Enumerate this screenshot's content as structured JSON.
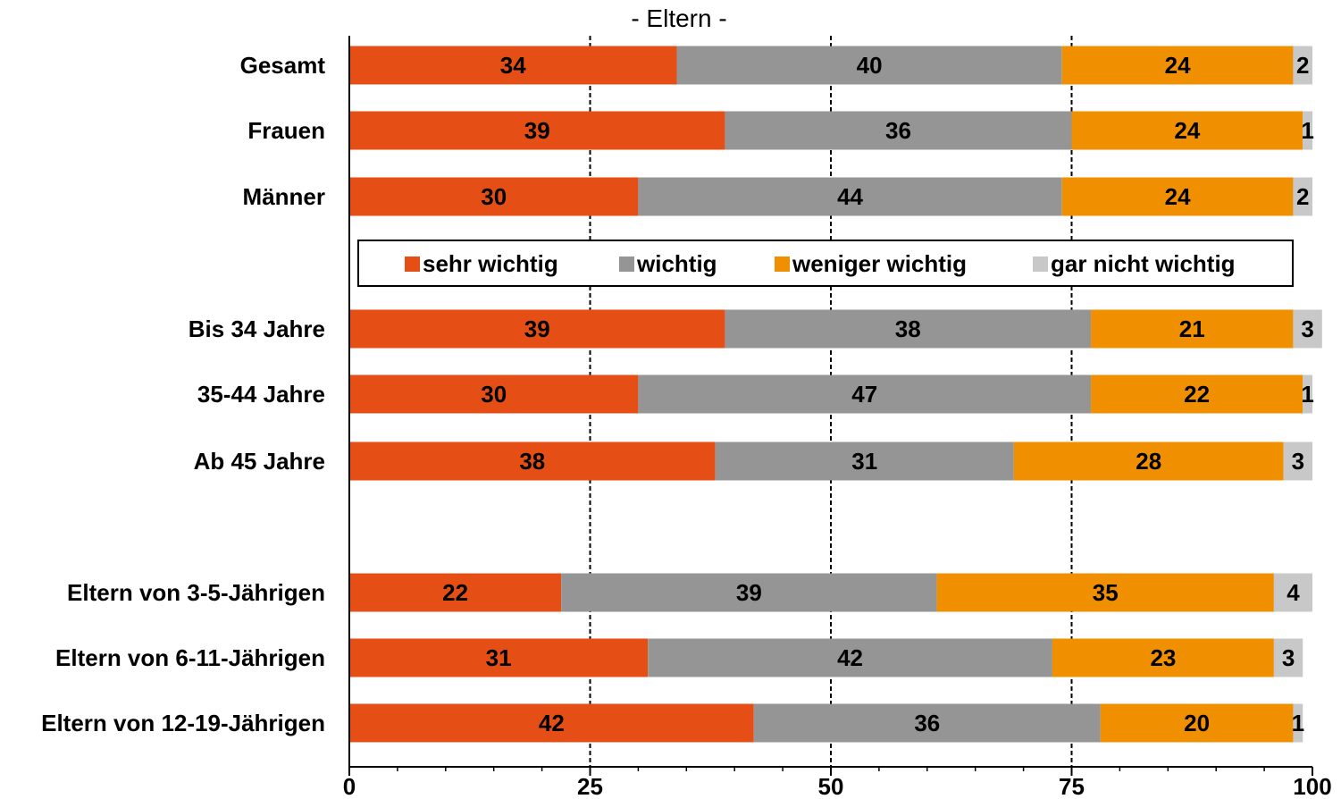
{
  "chart_data": {
    "type": "bar",
    "orientation": "horizontal",
    "stacked": true,
    "title": "- Eltern -",
    "xlim": [
      0,
      100
    ],
    "xticks": [
      "0",
      "25",
      "50",
      "75",
      "100"
    ],
    "grid": true,
    "legend_position": "inside-middle",
    "categories": [
      "Gesamt",
      "Frauen",
      "Männer",
      "Bis 34 Jahre",
      "35-44 Jahre",
      "Ab 45 Jahre",
      "Eltern von 3-5-Jährigen",
      "Eltern von 6-11-Jährigen",
      "Eltern von 12-19-Jährigen"
    ],
    "series": [
      {
        "name": "sehr wichtig",
        "color": "#E54F16",
        "values": [
          34,
          39,
          30,
          39,
          30,
          38,
          22,
          31,
          42
        ]
      },
      {
        "name": "wichtig",
        "color": "#959595",
        "values": [
          40,
          36,
          44,
          38,
          47,
          31,
          39,
          42,
          36
        ]
      },
      {
        "name": "weniger wichtig",
        "color": "#F09000",
        "values": [
          24,
          24,
          24,
          21,
          22,
          28,
          35,
          23,
          20
        ]
      },
      {
        "name": "gar nicht wichtig",
        "color": "#C8C8C8",
        "values": [
          2,
          1,
          2,
          3,
          1,
          3,
          4,
          3,
          1
        ]
      }
    ]
  }
}
